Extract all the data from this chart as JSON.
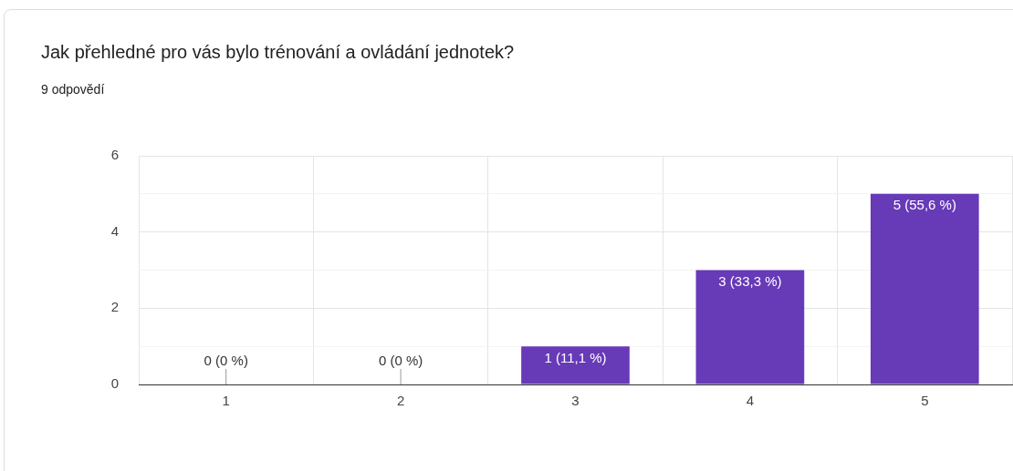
{
  "chart_data": {
    "type": "bar",
    "title": "Jak přehledné pro vás bylo trénování a ovládání jednotek?",
    "subtitle": "9 odpovědí",
    "categories": [
      "1",
      "2",
      "3",
      "4",
      "5"
    ],
    "values": [
      0,
      0,
      1,
      3,
      5
    ],
    "color": "#673ab7",
    "value_labels": [
      "0 (0 %)",
      "0 (0 %)",
      "1 (11,1 %)",
      "3 (33,3 %)",
      "5 (55,6 %)"
    ],
    "ylim": [
      0,
      6
    ],
    "yticks": [
      0,
      {
        "value": 1,
        "label": null
      },
      2,
      {
        "value": 3,
        "label": null
      },
      4,
      {
        "value": 5,
        "label": null
      },
      6
    ],
    "grid": true,
    "legend": false
  }
}
